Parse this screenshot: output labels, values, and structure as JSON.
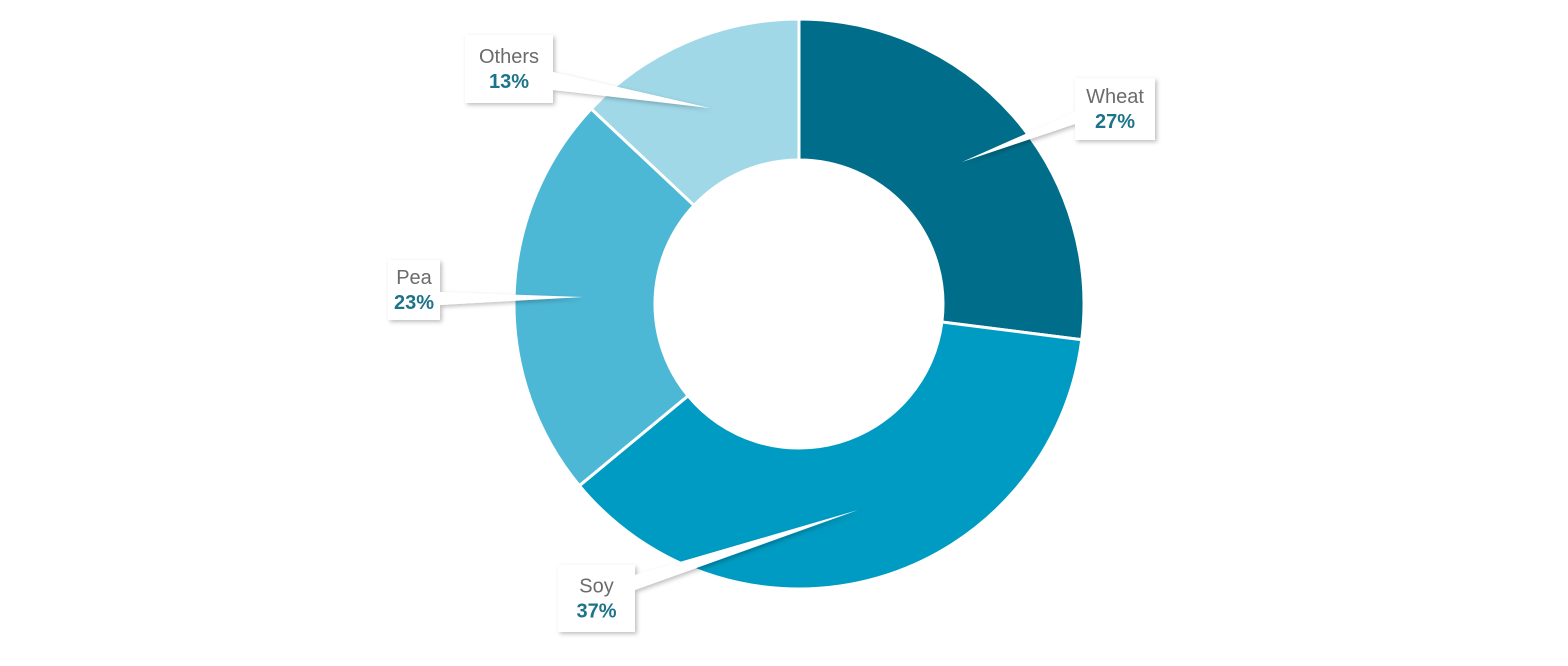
{
  "chart_data": {
    "type": "pie",
    "subtype": "donut",
    "title": "",
    "categories": [
      "Wheat",
      "Soy",
      "Pea",
      "Others"
    ],
    "values": [
      27,
      37,
      23,
      13
    ],
    "labels": [
      "27%",
      "37%",
      "23%",
      "13%"
    ],
    "colors": [
      "#006E8A",
      "#009BC2",
      "#4DB8D6",
      "#A0D8E8"
    ],
    "start_angle": "top, clockwise",
    "legend": "none, callout labels"
  }
}
